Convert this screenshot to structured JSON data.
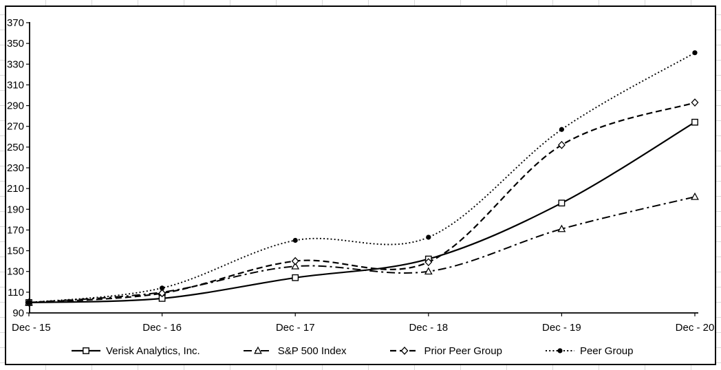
{
  "chart_data": {
    "type": "line",
    "title": "",
    "xlabel": "",
    "ylabel": "",
    "categories": [
      "Dec - 15",
      "Dec - 16",
      "Dec - 17",
      "Dec - 18",
      "Dec - 19",
      "Dec - 20"
    ],
    "series": [
      {
        "name": "Verisk Analytics, Inc.",
        "line_style": "solid",
        "marker": "open-square",
        "values": [
          100,
          104,
          124,
          142,
          196,
          274
        ]
      },
      {
        "name": "S&P 500 Index",
        "line_style": "dash-dot",
        "marker": "open-triangle",
        "values": [
          100,
          110,
          135,
          130,
          171,
          202
        ]
      },
      {
        "name": "Prior Peer Group",
        "line_style": "dashed",
        "marker": "open-diamond",
        "values": [
          100,
          109,
          140,
          139,
          252,
          293
        ]
      },
      {
        "name": "Peer Group",
        "line_style": "dotted",
        "marker": "filled-circle",
        "values": [
          100,
          114,
          160,
          163,
          267,
          341
        ]
      }
    ],
    "ylim": [
      90,
      370
    ],
    "ytick_step": 20,
    "yticks": [
      90,
      110,
      130,
      150,
      170,
      190,
      210,
      230,
      250,
      270,
      290,
      310,
      330,
      350,
      370
    ],
    "grid": false,
    "smoothed_lines": true,
    "legend_position": "bottom",
    "line_color": "#000000",
    "background_color": "#ffffff",
    "frame_border_color": "#000000"
  }
}
